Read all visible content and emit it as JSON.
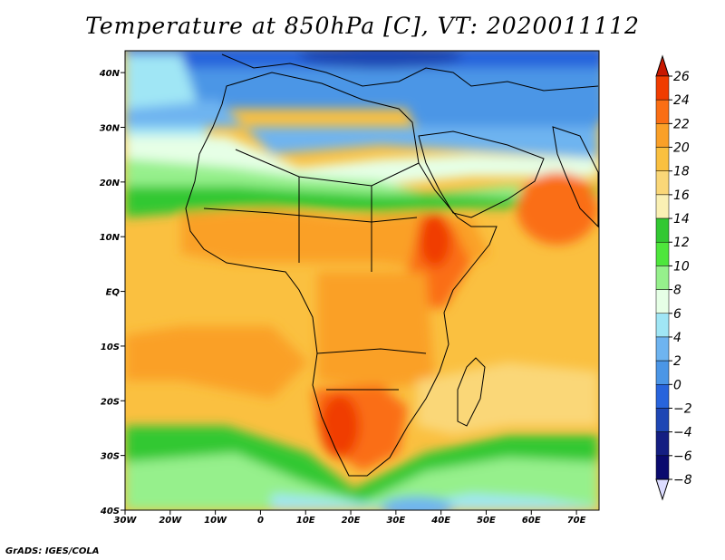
{
  "title": "Temperature at 850hPa [C], VT: 2020011112",
  "credit": "GrADS: IGES/COLA",
  "map": {
    "lon_range": [
      -30,
      75
    ],
    "lat_range": [
      -40,
      44
    ],
    "lon_ticks": [
      {
        "value": -30,
        "label": "30W"
      },
      {
        "value": -20,
        "label": "20W"
      },
      {
        "value": -10,
        "label": "10W"
      },
      {
        "value": 0,
        "label": "0"
      },
      {
        "value": 10,
        "label": "10E"
      },
      {
        "value": 20,
        "label": "20E"
      },
      {
        "value": 30,
        "label": "30E"
      },
      {
        "value": 40,
        "label": "40E"
      },
      {
        "value": 50,
        "label": "50E"
      },
      {
        "value": 60,
        "label": "60E"
      },
      {
        "value": 70,
        "label": "70E"
      }
    ],
    "lat_ticks": [
      {
        "value": 40,
        "label": "40N"
      },
      {
        "value": 30,
        "label": "30N"
      },
      {
        "value": 20,
        "label": "20N"
      },
      {
        "value": 10,
        "label": "10N"
      },
      {
        "value": 0,
        "label": "EQ"
      },
      {
        "value": -10,
        "label": "10S"
      },
      {
        "value": -20,
        "label": "20S"
      },
      {
        "value": -30,
        "label": "30S"
      },
      {
        "value": -40,
        "label": "40S"
      }
    ]
  },
  "colorbar": {
    "levels": [
      26,
      24,
      22,
      20,
      18,
      16,
      14,
      12,
      10,
      8,
      6,
      4,
      2,
      0,
      -2,
      -4,
      -6,
      -8
    ],
    "colors": [
      "#c81800",
      "#f03c00",
      "#fa6e14",
      "#faa028",
      "#fac040",
      "#fad778",
      "#faf0b4",
      "#32c832",
      "#4ee63c",
      "#96f08c",
      "#e6ffe6",
      "#a0e6f5",
      "#6eb4f0",
      "#4b96e6",
      "#2864dc",
      "#1e46b4",
      "#141e82",
      "#0a0a6e",
      "#dcdcff"
    ]
  }
}
